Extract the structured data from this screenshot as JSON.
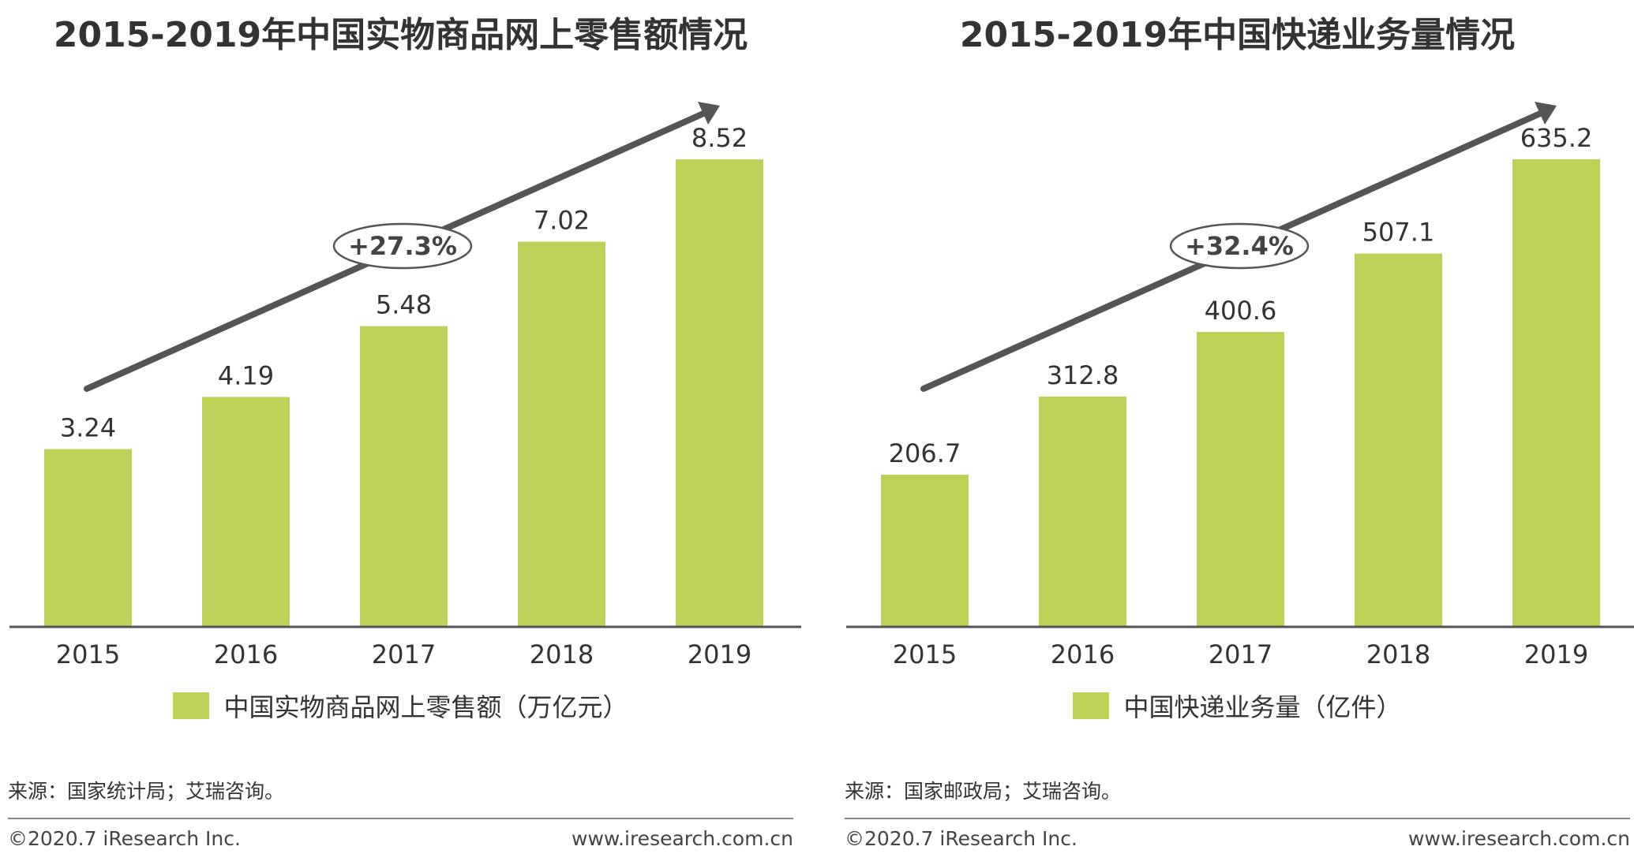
{
  "colors": {
    "bar": "#bcd155",
    "arrow": "#555555",
    "text": "#333333",
    "axis": "#555555"
  },
  "chart_data": [
    {
      "type": "bar",
      "title": "2015-2019年中国实物商品网上零售额情况",
      "categories": [
        "2015",
        "2016",
        "2017",
        "2018",
        "2019"
      ],
      "series": [
        {
          "name": "中国实物商品网上零售额（万亿元）",
          "values": [
            3.24,
            4.19,
            5.48,
            7.02,
            8.52
          ]
        }
      ],
      "value_labels": [
        "3.24",
        "4.19",
        "5.48",
        "7.02",
        "8.52"
      ],
      "ylim": [
        0,
        9.7
      ],
      "growth_annotation": "+27.3%",
      "legend_position": "bottom",
      "grid": false
    },
    {
      "type": "bar",
      "title": "2015-2019年中国快递业务量情况",
      "categories": [
        "2015",
        "2016",
        "2017",
        "2018",
        "2019"
      ],
      "series": [
        {
          "name": "中国快递业务量（亿件）",
          "values": [
            206.7,
            312.8,
            400.6,
            507.1,
            635.2
          ]
        }
      ],
      "value_labels": [
        "206.7",
        "312.8",
        "400.6",
        "507.1",
        "635.2"
      ],
      "ylim": [
        0,
        723
      ],
      "growth_annotation": "+32.4%",
      "legend_position": "bottom",
      "grid": false
    }
  ],
  "footer": {
    "left_source": "来源：国家统计局；艾瑞咨询。",
    "right_source": "来源：国家邮政局；艾瑞咨询。",
    "copyright": "©2020.7 iResearch Inc.",
    "website": "www.iresearch.com.cn"
  }
}
